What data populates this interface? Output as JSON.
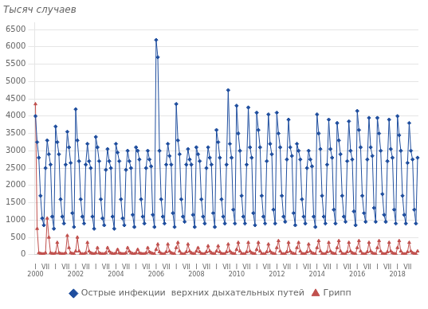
{
  "chart_data": {
    "type": "line",
    "title": "Тысяч случаев",
    "categories": [
      "I",
      null,
      null,
      null,
      null,
      null,
      "VII",
      null,
      null,
      null,
      null,
      null,
      "I",
      null,
      null,
      null,
      null,
      null,
      "VII",
      null,
      null,
      null,
      null,
      null,
      "I",
      null,
      null,
      null,
      null,
      null,
      "VII",
      null,
      null,
      null,
      null,
      null,
      "I",
      null,
      null,
      null,
      null,
      null,
      "VII",
      null,
      null,
      null,
      null,
      null,
      "I",
      null,
      null,
      null,
      null,
      null,
      "VII",
      null,
      null,
      null,
      null,
      null,
      "I",
      null,
      null,
      null,
      null,
      null,
      "VII",
      null,
      null,
      null,
      null,
      null,
      "I",
      null,
      null,
      null,
      null,
      null,
      "VII",
      null,
      null,
      null,
      null,
      null,
      "I",
      null,
      null,
      null,
      null,
      null,
      "VII",
      null,
      null,
      null,
      null,
      null,
      "I",
      null,
      null,
      null,
      null,
      null,
      "VII",
      null,
      null,
      null,
      null,
      null,
      "I",
      null,
      null,
      null,
      null,
      null,
      "VII",
      null,
      null,
      null,
      null,
      null,
      "I",
      null,
      null,
      null,
      null,
      null,
      "VII",
      null,
      null,
      null,
      null,
      null,
      "I",
      null,
      null,
      null,
      null,
      null,
      "VII",
      null,
      null,
      null,
      null,
      null,
      "I",
      null,
      null,
      null,
      null,
      null,
      "VII",
      null,
      null,
      null,
      null,
      null,
      "I",
      null,
      null,
      null,
      null,
      null,
      "VII",
      null,
      null,
      null,
      null,
      null,
      "I",
      null,
      null,
      null,
      null,
      null,
      "VII",
      null,
      null,
      null,
      null,
      null,
      "I",
      null,
      null,
      null,
      null,
      null,
      "VII",
      null,
      null,
      null,
      null,
      null,
      "I",
      null,
      null,
      null,
      null,
      null,
      "VII",
      null,
      null,
      null,
      null,
      null,
      "I",
      null,
      null,
      null,
      null,
      null,
      "VII",
      null,
      null,
      null,
      null,
      null,
      "I",
      null,
      null,
      null,
      null,
      null,
      "VII",
      null,
      null,
      null,
      null,
      null,
      null
    ],
    "year_labels": [
      "2000",
      null,
      null,
      null,
      null,
      null,
      null,
      null,
      null,
      null,
      null,
      null,
      null,
      null,
      null,
      null,
      null,
      null,
      null,
      null,
      null,
      null,
      null,
      null,
      "2002",
      null,
      null,
      null,
      null,
      null,
      null,
      null,
      null,
      null,
      null,
      null,
      null,
      null,
      null,
      null,
      null,
      null,
      null,
      null,
      null,
      null,
      null,
      null,
      "2004",
      null,
      null,
      null,
      null,
      null,
      null,
      null,
      null,
      null,
      null,
      null,
      null,
      null,
      null,
      null,
      null,
      null,
      null,
      null,
      null,
      null,
      null,
      null,
      "2006",
      null,
      null,
      null,
      null,
      null,
      null,
      null,
      null,
      null,
      null,
      null,
      null,
      null,
      null,
      null,
      null,
      null,
      null,
      null,
      null,
      null,
      null,
      null,
      "2008",
      null,
      null,
      null,
      null,
      null,
      null,
      null,
      null,
      null,
      null,
      null,
      null,
      null,
      null,
      null,
      null,
      null,
      null,
      null,
      null,
      null,
      null,
      null,
      "2010",
      null,
      null,
      null,
      null,
      null,
      null,
      null,
      null,
      null,
      null,
      null,
      null,
      null,
      null,
      null,
      null,
      null,
      null,
      null,
      null,
      null,
      null,
      null,
      "2012",
      null,
      null,
      null,
      null,
      null,
      null,
      null,
      null,
      null,
      null,
      null,
      null,
      null,
      null,
      null,
      null,
      null,
      null,
      null,
      null,
      null,
      null,
      null,
      "2014",
      null,
      null,
      null,
      null,
      null,
      null,
      null,
      null,
      null,
      null,
      null,
      null,
      null,
      null,
      null,
      null,
      null,
      null,
      null,
      null,
      null,
      null,
      null,
      "2016",
      null,
      null,
      null,
      null,
      null,
      null,
      null,
      null,
      null,
      null,
      null,
      null,
      null,
      null,
      null,
      null,
      null,
      null,
      null,
      null,
      null,
      null,
      null,
      "2018",
      null,
      null,
      null,
      null,
      null,
      null,
      null,
      null,
      null,
      null,
      null,
      null
    ],
    "series": [
      {
        "name": "Острые инфекции  верхних дыхательных путей",
        "color": "#1f4e9e",
        "marker": "diamond",
        "values": [
          4000,
          3250,
          2800,
          1700,
          1050,
          850,
          2500,
          3300,
          2900,
          2600,
          1100,
          750,
          3700,
          3250,
          2900,
          1600,
          1100,
          900,
          2600,
          3550,
          3100,
          2650,
          1200,
          800,
          4200,
          3300,
          2700,
          1600,
          1100,
          900,
          2600,
          3200,
          2700,
          2500,
          1100,
          750,
          3400,
          3100,
          2700,
          1600,
          1050,
          850,
          2450,
          3050,
          2700,
          2500,
          1100,
          750,
          3200,
          2950,
          2700,
          1600,
          1050,
          850,
          2450,
          3000,
          2700,
          2500,
          1150,
          800,
          3100,
          3000,
          2750,
          1600,
          1100,
          900,
          2500,
          3000,
          2750,
          2550,
          1150,
          800,
          6200,
          5700,
          3000,
          1600,
          1100,
          900,
          2600,
          3200,
          2850,
          2600,
          1200,
          800,
          4350,
          3300,
          2900,
          1600,
          1100,
          950,
          2600,
          3050,
          2750,
          2600,
          1150,
          800,
          3100,
          2900,
          2700,
          1600,
          1100,
          900,
          2500,
          3100,
          2800,
          2600,
          1200,
          800,
          3600,
          3250,
          2800,
          1600,
          1100,
          900,
          2600,
          4750,
          3200,
          2800,
          1300,
          900,
          4300,
          3500,
          3000,
          1700,
          1100,
          900,
          2600,
          4250,
          3100,
          2800,
          1200,
          850,
          4100,
          3600,
          3100,
          1700,
          1100,
          900,
          2700,
          4050,
          3200,
          2900,
          1300,
          900,
          4100,
          3500,
          3100,
          1700,
          1100,
          950,
          2750,
          3900,
          3100,
          2850,
          1200,
          850,
          3200,
          3000,
          2750,
          1600,
          1100,
          900,
          2500,
          3000,
          2750,
          2550,
          1100,
          800,
          4050,
          3500,
          3050,
          1700,
          1100,
          900,
          2600,
          3900,
          3050,
          2800,
          1300,
          900,
          3800,
          3300,
          2900,
          1700,
          1100,
          950,
          2700,
          3850,
          3000,
          2750,
          1250,
          850,
          4150,
          3600,
          3100,
          1700,
          1200,
          950,
          2750,
          3950,
          3100,
          2850,
          1350,
          950,
          3950,
          3500,
          3000,
          1750,
          1150,
          950,
          2700,
          3900,
          3050,
          2800,
          1300,
          900,
          4000,
          3450,
          3000,
          1700,
          1150,
          900,
          2650,
          3800,
          3000,
          2750,
          1300,
          900,
          2800
        ]
      },
      {
        "name": "Грипп",
        "color": "#c0504d",
        "marker": "triangle",
        "values": [
          4350,
          750,
          50,
          30,
          20,
          20,
          50,
          1050,
          500,
          50,
          30,
          20,
          50,
          350,
          50,
          30,
          20,
          20,
          50,
          550,
          200,
          50,
          30,
          20,
          100,
          500,
          100,
          30,
          20,
          20,
          50,
          350,
          100,
          50,
          30,
          20,
          50,
          200,
          50,
          30,
          20,
          20,
          50,
          200,
          100,
          50,
          30,
          20,
          50,
          150,
          50,
          30,
          20,
          20,
          50,
          200,
          100,
          50,
          30,
          20,
          50,
          150,
          50,
          30,
          20,
          20,
          50,
          200,
          80,
          50,
          30,
          20,
          150,
          300,
          80,
          30,
          20,
          20,
          80,
          300,
          100,
          50,
          30,
          20,
          200,
          350,
          100,
          30,
          20,
          20,
          80,
          300,
          100,
          50,
          30,
          20,
          100,
          200,
          80,
          30,
          20,
          20,
          80,
          250,
          100,
          50,
          30,
          20,
          100,
          250,
          80,
          30,
          20,
          20,
          80,
          300,
          100,
          50,
          30,
          20,
          150,
          350,
          100,
          30,
          20,
          20,
          80,
          350,
          100,
          50,
          30,
          20,
          150,
          350,
          100,
          30,
          20,
          20,
          80,
          300,
          100,
          50,
          30,
          20,
          200,
          400,
          100,
          30,
          20,
          20,
          80,
          350,
          100,
          50,
          30,
          20,
          200,
          350,
          100,
          30,
          20,
          20,
          80,
          300,
          100,
          50,
          30,
          20,
          200,
          400,
          100,
          30,
          20,
          20,
          80,
          350,
          100,
          50,
          30,
          20,
          200,
          400,
          100,
          30,
          20,
          20,
          80,
          350,
          100,
          50,
          30,
          20,
          200,
          400,
          100,
          30,
          20,
          20,
          80,
          350,
          100,
          50,
          30,
          20,
          200,
          400,
          100,
          30,
          20,
          20,
          80,
          350,
          100,
          50,
          30,
          20,
          200,
          400,
          100,
          30,
          20,
          20,
          80,
          350,
          100,
          50,
          30,
          20,
          100
        ]
      }
    ],
    "ylim": [
      0,
      6700
    ],
    "yticks": [
      0,
      500,
      1000,
      1500,
      2000,
      2500,
      3000,
      3500,
      4000,
      4500,
      5000,
      5500,
      6000,
      6500
    ],
    "grid": "y",
    "legend": "bottom"
  }
}
